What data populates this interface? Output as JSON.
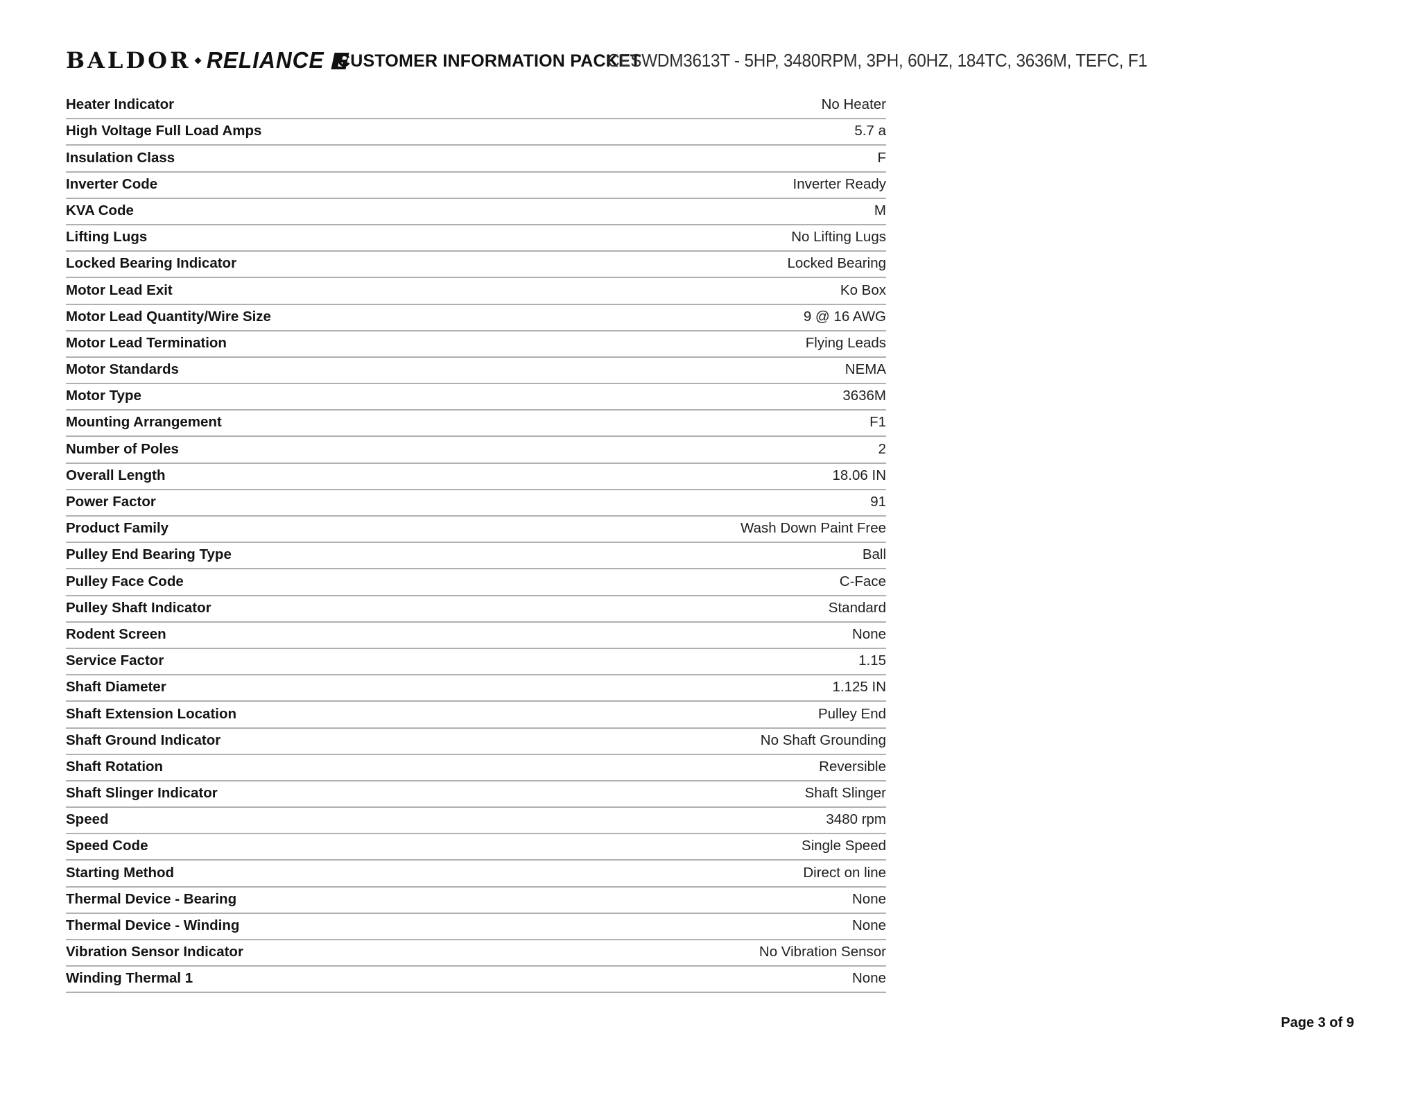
{
  "header": {
    "logo": {
      "brand1": "BALDOR",
      "brand2": "RELIANCE",
      "separator_icon": "diamond-dot",
      "mark_icon": "baldor-flag"
    },
    "title": "CUSTOMER INFORMATION PACKET",
    "product_line": "CESWDM3613T - 5HP, 3480RPM, 3PH, 60HZ, 184TC, 3636M, TEFC, F1"
  },
  "table": {
    "rows": [
      {
        "label": "Heater Indicator",
        "value": "No Heater"
      },
      {
        "label": "High Voltage Full Load Amps",
        "value": "5.7 a"
      },
      {
        "label": "Insulation Class",
        "value": "F"
      },
      {
        "label": "Inverter Code",
        "value": "Inverter Ready"
      },
      {
        "label": "KVA Code",
        "value": "M"
      },
      {
        "label": "Lifting Lugs",
        "value": "No Lifting Lugs"
      },
      {
        "label": "Locked Bearing Indicator",
        "value": "Locked Bearing"
      },
      {
        "label": "Motor Lead Exit",
        "value": "Ko Box"
      },
      {
        "label": "Motor Lead Quantity/Wire Size",
        "value": "9 @ 16 AWG"
      },
      {
        "label": "Motor Lead Termination",
        "value": "Flying Leads"
      },
      {
        "label": "Motor Standards",
        "value": "NEMA"
      },
      {
        "label": "Motor Type",
        "value": "3636M"
      },
      {
        "label": "Mounting Arrangement",
        "value": "F1"
      },
      {
        "label": "Number of Poles",
        "value": "2"
      },
      {
        "label": "Overall Length",
        "value": "18.06 IN"
      },
      {
        "label": "Power Factor",
        "value": "91"
      },
      {
        "label": "Product Family",
        "value": "Wash Down Paint Free"
      },
      {
        "label": "Pulley End Bearing Type",
        "value": "Ball"
      },
      {
        "label": "Pulley Face Code",
        "value": "C-Face"
      },
      {
        "label": "Pulley Shaft Indicator",
        "value": "Standard"
      },
      {
        "label": "Rodent Screen",
        "value": "None"
      },
      {
        "label": "Service Factor",
        "value": "1.15"
      },
      {
        "label": "Shaft Diameter",
        "value": "1.125 IN"
      },
      {
        "label": "Shaft Extension Location",
        "value": "Pulley End"
      },
      {
        "label": "Shaft Ground Indicator",
        "value": "No Shaft Grounding"
      },
      {
        "label": "Shaft Rotation",
        "value": "Reversible"
      },
      {
        "label": "Shaft Slinger Indicator",
        "value": "Shaft Slinger"
      },
      {
        "label": "Speed",
        "value": "3480 rpm"
      },
      {
        "label": "Speed Code",
        "value": "Single Speed"
      },
      {
        "label": "Starting Method",
        "value": "Direct on line"
      },
      {
        "label": "Thermal Device - Bearing",
        "value": "None"
      },
      {
        "label": "Thermal Device - Winding",
        "value": "None"
      },
      {
        "label": "Vibration Sensor Indicator",
        "value": "No Vibration Sensor"
      },
      {
        "label": "Winding Thermal 1",
        "value": "None"
      }
    ]
  },
  "footer": {
    "page_label": "Page 3 of 9"
  },
  "colors": {
    "text": "#161616",
    "separator_line": "#b0b0b0",
    "background": "#ffffff"
  }
}
